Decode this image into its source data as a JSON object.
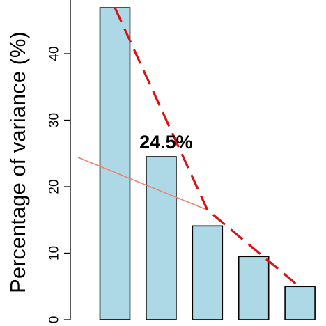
{
  "chart_data": {
    "type": "bar",
    "ylabel": "Percentage of variance (%)",
    "ylim": [
      0,
      50
    ],
    "yticks": [
      0,
      10,
      20,
      30,
      40
    ],
    "values": [
      46.9,
      24.5,
      14.1,
      9.5,
      5.0
    ],
    "annotation": {
      "text": "24.5%",
      "bar_index": 1
    },
    "broken_line": {
      "style": "dashed",
      "color": "#dd1111",
      "x": [
        1,
        3,
        5
      ],
      "y": [
        46.9,
        16.5,
        4.9
      ]
    },
    "trend_line": {
      "style": "solid",
      "color": "#f08070",
      "x": [
        0.2,
        3
      ],
      "y": [
        24.4,
        16.5
      ]
    },
    "bar_color": "#add8e6",
    "grid": false,
    "legend": "none"
  }
}
